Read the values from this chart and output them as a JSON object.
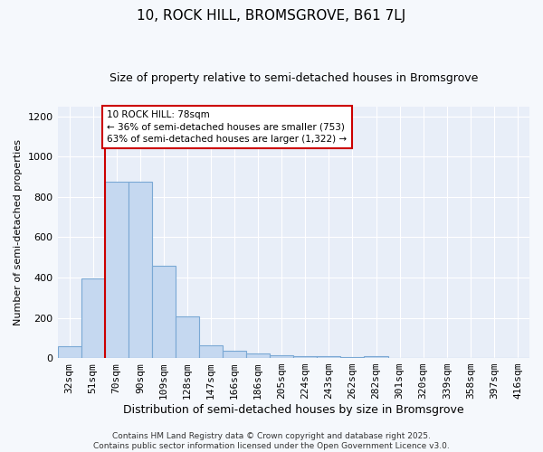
{
  "title": "10, ROCK HILL, BROMSGROVE, B61 7LJ",
  "subtitle": "Size of property relative to semi-detached houses in Bromsgrove",
  "xlabel": "Distribution of semi-detached houses by size in Bromsgrove",
  "ylabel": "Number of semi-detached properties",
  "categories": [
    "32sqm",
    "51sqm",
    "70sqm",
    "90sqm",
    "109sqm",
    "128sqm",
    "147sqm",
    "166sqm",
    "186sqm",
    "205sqm",
    "224sqm",
    "243sqm",
    "262sqm",
    "282sqm",
    "301sqm",
    "320sqm",
    "339sqm",
    "358sqm",
    "397sqm",
    "416sqm"
  ],
  "values": [
    60,
    395,
    875,
    875,
    460,
    205,
    65,
    35,
    25,
    15,
    10,
    8,
    5,
    8,
    2,
    2,
    1,
    0,
    0,
    0
  ],
  "bar_color": "#c5d8f0",
  "bar_edge_color": "#7aa8d4",
  "vline_color": "#cc0000",
  "annotation_text": "10 ROCK HILL: 78sqm\n← 36% of semi-detached houses are smaller (753)\n63% of semi-detached houses are larger (1,322) →",
  "ylim": [
    0,
    1250
  ],
  "yticks": [
    0,
    200,
    400,
    600,
    800,
    1000,
    1200
  ],
  "plot_bg_color": "#e8eef8",
  "fig_bg_color": "#f5f8fc",
  "grid_color": "#ffffff",
  "footer": "Contains HM Land Registry data © Crown copyright and database right 2025.\nContains public sector information licensed under the Open Government Licence v3.0.",
  "title_fontsize": 11,
  "subtitle_fontsize": 9,
  "xlabel_fontsize": 9,
  "ylabel_fontsize": 8,
  "tick_fontsize": 8,
  "ann_fontsize": 7.5,
  "footer_fontsize": 6.5
}
